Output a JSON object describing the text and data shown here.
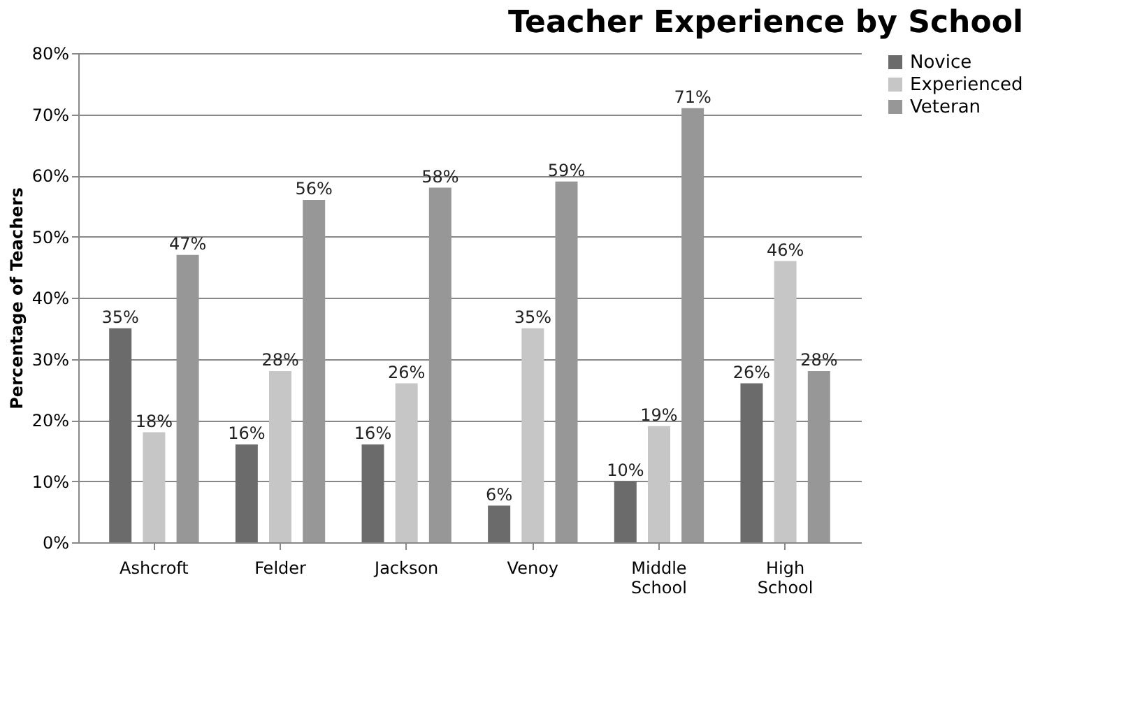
{
  "chart_data": {
    "type": "bar",
    "title": "Teacher Experience by School",
    "ylabel": "Percentage of Teachers",
    "categories": [
      "Ashcroft",
      "Felder",
      "Jackson",
      "Venoy",
      "Middle School",
      "High School"
    ],
    "series": [
      {
        "name": "Novice",
        "color": "#6b6b6b",
        "values": [
          35,
          16,
          16,
          6,
          10,
          26
        ],
        "value_labels": [
          "35%",
          "16%",
          "16%",
          "6%",
          "10%",
          "26%"
        ]
      },
      {
        "name": "Experienced",
        "color": "#c6c6c6",
        "values": [
          18,
          28,
          26,
          35,
          19,
          46
        ],
        "value_labels": [
          "18%",
          "28%",
          "26%",
          "35%",
          "19%",
          "46%"
        ]
      },
      {
        "name": "Veteran",
        "color": "#979797",
        "values": [
          47,
          56,
          58,
          59,
          71,
          28
        ],
        "value_labels": [
          "47%",
          "56%",
          "58%",
          "59%",
          "71%",
          "28%"
        ]
      }
    ],
    "ylim": [
      0,
      80
    ],
    "yticks": [
      {
        "value": 0,
        "label": "0%"
      },
      {
        "value": 10,
        "label": "10%"
      },
      {
        "value": 20,
        "label": "20%"
      },
      {
        "value": 30,
        "label": "30%"
      },
      {
        "value": 40,
        "label": "40%"
      },
      {
        "value": 50,
        "label": "50%"
      },
      {
        "value": 60,
        "label": "60%"
      },
      {
        "value": 70,
        "label": "70%"
      },
      {
        "value": 80,
        "label": "80%"
      }
    ],
    "grid": "y",
    "legend": "right"
  }
}
